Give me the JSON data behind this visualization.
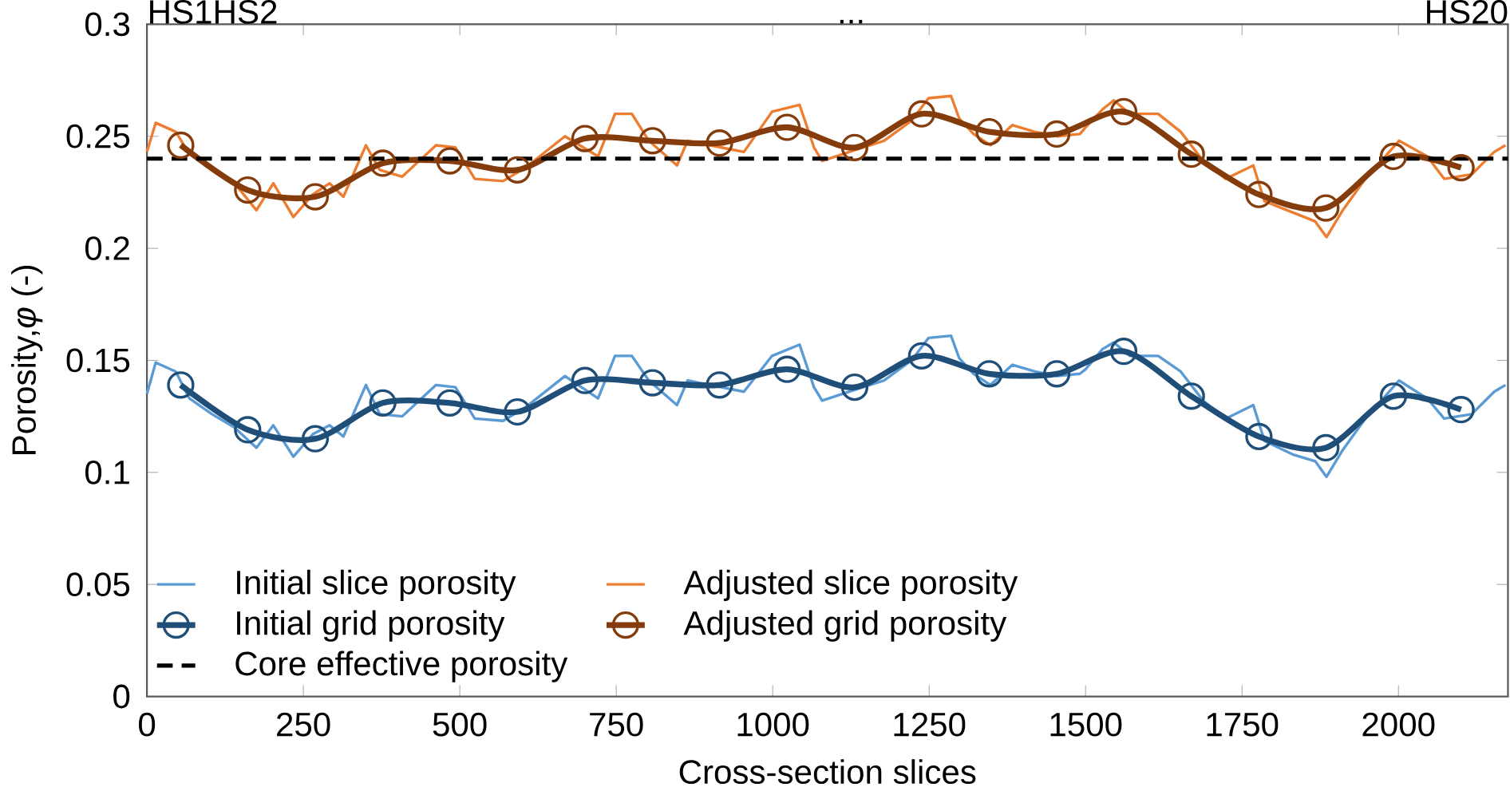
{
  "chart_data": {
    "type": "line",
    "xlabel": "Cross-section slices",
    "ylabel": "Porosity,*φ* (-)",
    "xlim": [
      0,
      2175
    ],
    "ylim": [
      0,
      0.3
    ],
    "xticks": [
      0,
      250,
      500,
      750,
      1000,
      1250,
      1500,
      1750,
      2000
    ],
    "yticks": [
      0,
      0.05,
      0.1,
      0.15,
      0.2,
      0.25,
      0.3
    ],
    "grid": false,
    "legend": "bottom left",
    "line_style": "solid",
    "series": [
      {
        "name": "Initial slice porosity",
        "color": "#5b9bd5",
        "marker": "none",
        "x": [
          0,
          14,
          46,
          68,
          104,
          140,
          175,
          202,
          234,
          265,
          292,
          314,
          350,
          372,
          408,
          462,
          493,
          524,
          569,
          605,
          668,
          721,
          748,
          775,
          802,
          847,
          864,
          918,
          954,
          999,
          1043,
          1066,
          1079,
          1133,
          1178,
          1222,
          1249,
          1285,
          1298,
          1321,
          1348,
          1383,
          1419,
          1455,
          1491,
          1500,
          1527,
          1545,
          1571,
          1616,
          1652,
          1688,
          1724,
          1768,
          1786,
          1831,
          1867,
          1885,
          1911,
          1947,
          2001,
          2046,
          2073,
          2117,
          2153,
          2171
        ],
        "values": [
          0.135,
          0.149,
          0.145,
          0.133,
          0.126,
          0.12,
          0.111,
          0.121,
          0.107,
          0.117,
          0.121,
          0.116,
          0.139,
          0.126,
          0.125,
          0.139,
          0.138,
          0.124,
          0.123,
          0.129,
          0.143,
          0.133,
          0.152,
          0.152,
          0.141,
          0.13,
          0.141,
          0.138,
          0.136,
          0.152,
          0.157,
          0.138,
          0.132,
          0.137,
          0.141,
          0.15,
          0.16,
          0.161,
          0.151,
          0.144,
          0.139,
          0.148,
          0.145,
          0.143,
          0.144,
          0.146,
          0.155,
          0.158,
          0.152,
          0.152,
          0.145,
          0.132,
          0.124,
          0.13,
          0.114,
          0.108,
          0.105,
          0.098,
          0.11,
          0.124,
          0.141,
          0.133,
          0.124,
          0.126,
          0.136,
          0.139
        ]
      },
      {
        "name": "Adjusted slice porosity",
        "color": "#ed7d31",
        "marker": "none",
        "x": [
          0,
          14,
          46,
          68,
          104,
          140,
          175,
          202,
          234,
          265,
          292,
          314,
          350,
          372,
          408,
          462,
          493,
          524,
          569,
          605,
          668,
          721,
          748,
          775,
          802,
          847,
          864,
          918,
          954,
          999,
          1043,
          1066,
          1079,
          1133,
          1178,
          1222,
          1249,
          1285,
          1298,
          1321,
          1348,
          1383,
          1419,
          1455,
          1491,
          1500,
          1527,
          1545,
          1571,
          1616,
          1652,
          1688,
          1724,
          1768,
          1786,
          1831,
          1867,
          1885,
          1911,
          1947,
          2001,
          2046,
          2073,
          2117,
          2153,
          2171
        ],
        "values": [
          0.243,
          0.256,
          0.252,
          0.242,
          0.235,
          0.229,
          0.217,
          0.229,
          0.214,
          0.224,
          0.229,
          0.223,
          0.246,
          0.235,
          0.232,
          0.246,
          0.245,
          0.231,
          0.23,
          0.236,
          0.25,
          0.241,
          0.26,
          0.26,
          0.248,
          0.237,
          0.248,
          0.245,
          0.243,
          0.261,
          0.264,
          0.245,
          0.239,
          0.244,
          0.248,
          0.257,
          0.267,
          0.268,
          0.258,
          0.251,
          0.246,
          0.255,
          0.252,
          0.25,
          0.251,
          0.254,
          0.262,
          0.266,
          0.26,
          0.26,
          0.252,
          0.239,
          0.231,
          0.237,
          0.221,
          0.216,
          0.212,
          0.205,
          0.217,
          0.231,
          0.248,
          0.241,
          0.231,
          0.233,
          0.243,
          0.246
        ]
      },
      {
        "name": "Initial grid porosity",
        "color": "#1f4e79",
        "marker": "circle",
        "x": [
          54,
          161,
          269,
          377,
          484,
          592,
          700,
          808,
          915,
          1023,
          1131,
          1238,
          1346,
          1454,
          1561,
          1669,
          1777,
          1884,
          1992,
          2100
        ],
        "values": [
          0.139,
          0.119,
          0.115,
          0.131,
          0.131,
          0.127,
          0.141,
          0.14,
          0.139,
          0.146,
          0.138,
          0.152,
          0.144,
          0.144,
          0.154,
          0.134,
          0.116,
          0.111,
          0.134,
          0.128
        ]
      },
      {
        "name": "Adjusted grid porosity",
        "color": "#843c0c",
        "marker": "circle",
        "x": [
          54,
          161,
          269,
          377,
          484,
          592,
          700,
          808,
          915,
          1023,
          1131,
          1238,
          1346,
          1454,
          1561,
          1669,
          1777,
          1884,
          1992,
          2100
        ],
        "values": [
          0.246,
          0.226,
          0.223,
          0.238,
          0.239,
          0.235,
          0.249,
          0.248,
          0.247,
          0.254,
          0.245,
          0.26,
          0.252,
          0.251,
          0.261,
          0.242,
          0.224,
          0.218,
          0.241,
          0.236
        ]
      }
    ],
    "ref_lines": [
      {
        "axis": "y",
        "value": 0.24,
        "label": "Core effective porosity",
        "color": "#000000",
        "line_style": "dashed"
      }
    ],
    "annotations": [
      "HS1",
      "HS2",
      "...",
      "HS20"
    ]
  }
}
